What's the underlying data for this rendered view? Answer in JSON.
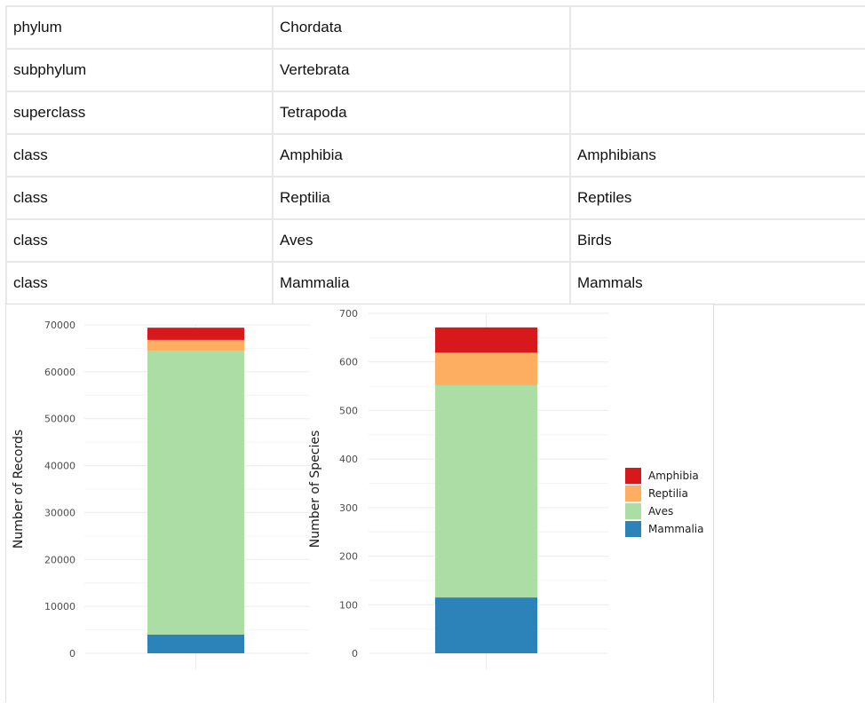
{
  "taxonomy_table": {
    "rows": [
      {
        "rank": "phylum",
        "name": "Chordata",
        "common": ""
      },
      {
        "rank": "subphylum",
        "name": "Vertebrata",
        "common": ""
      },
      {
        "rank": "superclass",
        "name": "Tetrapoda",
        "common": ""
      },
      {
        "rank": "class",
        "name": "Amphibia",
        "common": "Amphibians"
      },
      {
        "rank": "class",
        "name": "Reptilia",
        "common": "Reptiles"
      },
      {
        "rank": "class",
        "name": "Aves",
        "common": "Birds"
      },
      {
        "rank": "class",
        "name": "Mammalia",
        "common": "Mammals"
      }
    ]
  },
  "chart_data": [
    {
      "type": "bar",
      "stacked": true,
      "categories": [
        ""
      ],
      "ylabel": "Number of Records",
      "xlabel": "",
      "ylim": [
        0,
        70000
      ],
      "yticks": [
        0,
        10000,
        20000,
        30000,
        40000,
        50000,
        60000,
        70000
      ],
      "grid": true,
      "series": [
        {
          "name": "Mammalia",
          "values": [
            4000
          ],
          "color": "#2b83ba"
        },
        {
          "name": "Aves",
          "values": [
            60500
          ],
          "color": "#abdda4"
        },
        {
          "name": "Reptilia",
          "values": [
            2300
          ],
          "color": "#fdae61"
        },
        {
          "name": "Amphibia",
          "values": [
            2600
          ],
          "color": "#d7191c"
        }
      ]
    },
    {
      "type": "bar",
      "stacked": true,
      "categories": [
        ""
      ],
      "ylabel": "Number of Species",
      "xlabel": "",
      "ylim": [
        0,
        700
      ],
      "yticks": [
        0,
        100,
        200,
        300,
        400,
        500,
        600,
        700
      ],
      "grid": true,
      "legend_position": "right",
      "series": [
        {
          "name": "Mammalia",
          "values": [
            115
          ],
          "color": "#2b83ba"
        },
        {
          "name": "Aves",
          "values": [
            437
          ],
          "color": "#abdda4"
        },
        {
          "name": "Reptilia",
          "values": [
            67
          ],
          "color": "#fdae61"
        },
        {
          "name": "Amphibia",
          "values": [
            52
          ],
          "color": "#d7191c"
        }
      ]
    }
  ],
  "legend": {
    "items": [
      {
        "label": "Amphibia",
        "color": "#d7191c"
      },
      {
        "label": "Reptilia",
        "color": "#fdae61"
      },
      {
        "label": "Aves",
        "color": "#abdda4"
      },
      {
        "label": "Mammalia",
        "color": "#2b83ba"
      }
    ]
  }
}
